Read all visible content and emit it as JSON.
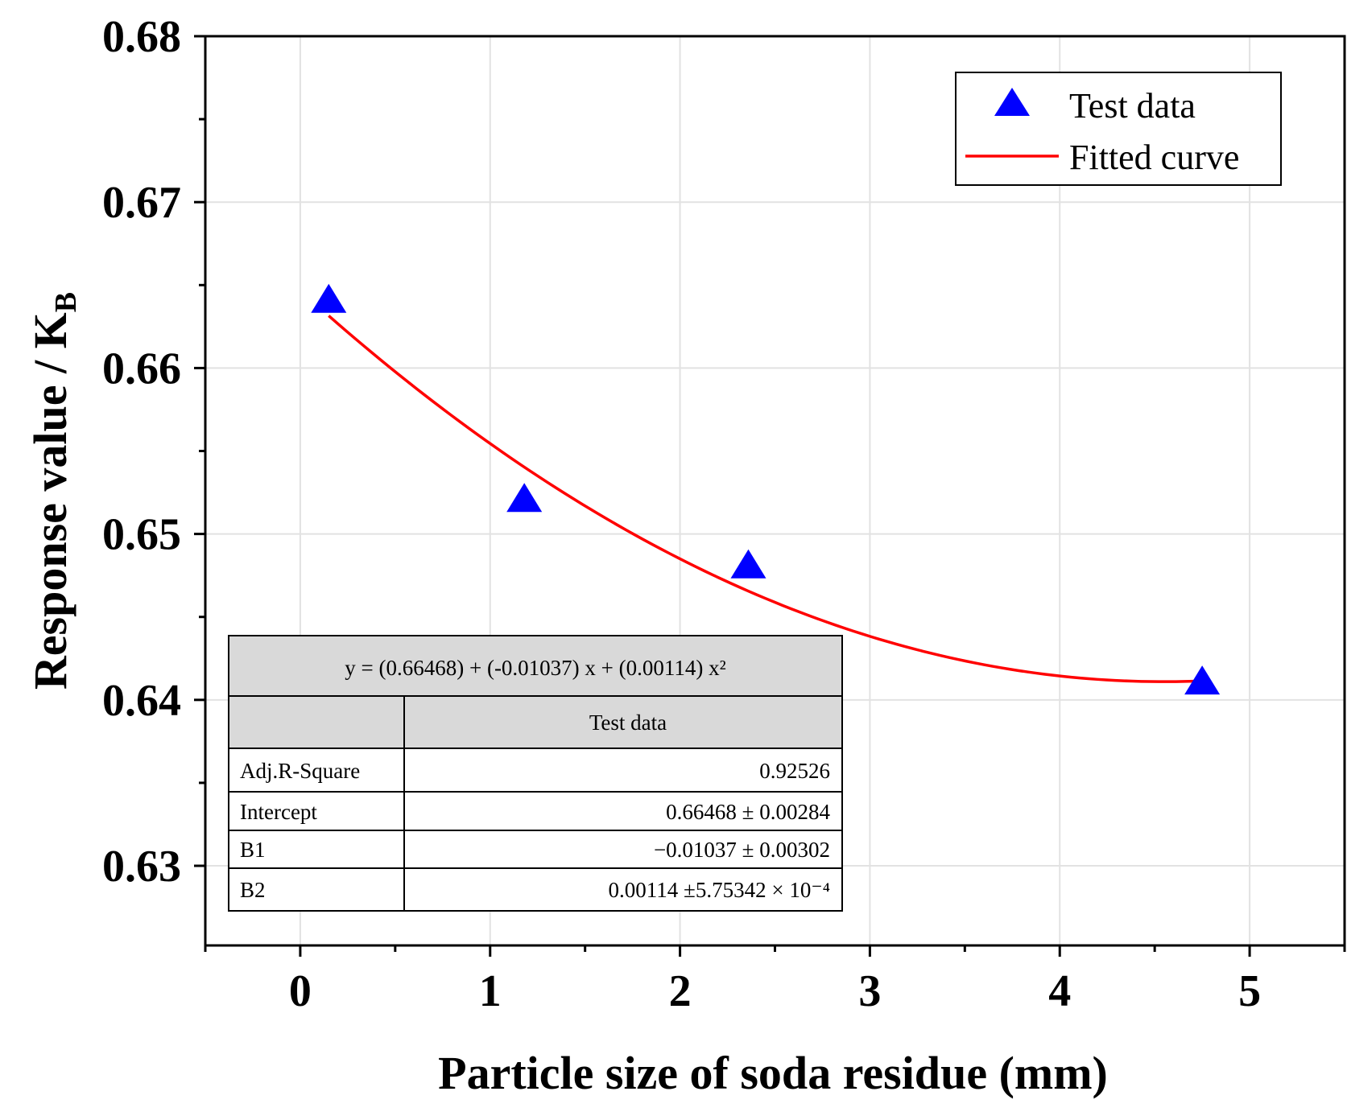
{
  "chart_data": {
    "type": "scatter",
    "title": "",
    "xlabel": "Particle size of soda residue (mm)",
    "ylabel_main": "Response value / K",
    "ylabel_subscript": "B",
    "xlim": [
      -0.5,
      5.5
    ],
    "ylim": [
      0.6252,
      0.68
    ],
    "xticks": [
      0,
      1,
      2,
      3,
      4,
      5
    ],
    "xtick_labels": [
      "0",
      "1",
      "2",
      "3",
      "4",
      "5"
    ],
    "yticks": [
      0.63,
      0.64,
      0.65,
      0.66,
      0.67,
      0.68
    ],
    "ytick_labels": [
      "0.63",
      "0.64",
      "0.65",
      "0.66",
      "0.67",
      "0.68"
    ],
    "grid": true,
    "legend_position": "top-right",
    "series": [
      {
        "name": "Test data",
        "type": "scatter",
        "marker": "triangle",
        "color": "#0000ff",
        "x": [
          0.15,
          1.18,
          2.36,
          4.75
        ],
        "y": [
          0.6642,
          0.6522,
          0.6482,
          0.6412
        ]
      },
      {
        "name": "Fitted curve",
        "type": "line",
        "color": "#ff0000",
        "x_range": [
          0.15,
          4.75
        ],
        "coefficients": {
          "intercept": 0.66468,
          "b1": -0.01037,
          "b2": 0.00114
        }
      }
    ],
    "fit_table": {
      "equation": "y =  (0.66468) + (-0.01037) x + (0.00114) x²",
      "column_header": "Test data",
      "rows": [
        {
          "label": "Adj.R-Square",
          "value": "0.92526"
        },
        {
          "label": "Intercept",
          "value": "0.66468 ± 0.00284"
        },
        {
          "label": "B1",
          "value": "−0.01037 ± 0.00302"
        },
        {
          "label": "B2",
          "value": "0.00114 ±5.75342 × 10⁻⁴"
        }
      ]
    }
  }
}
